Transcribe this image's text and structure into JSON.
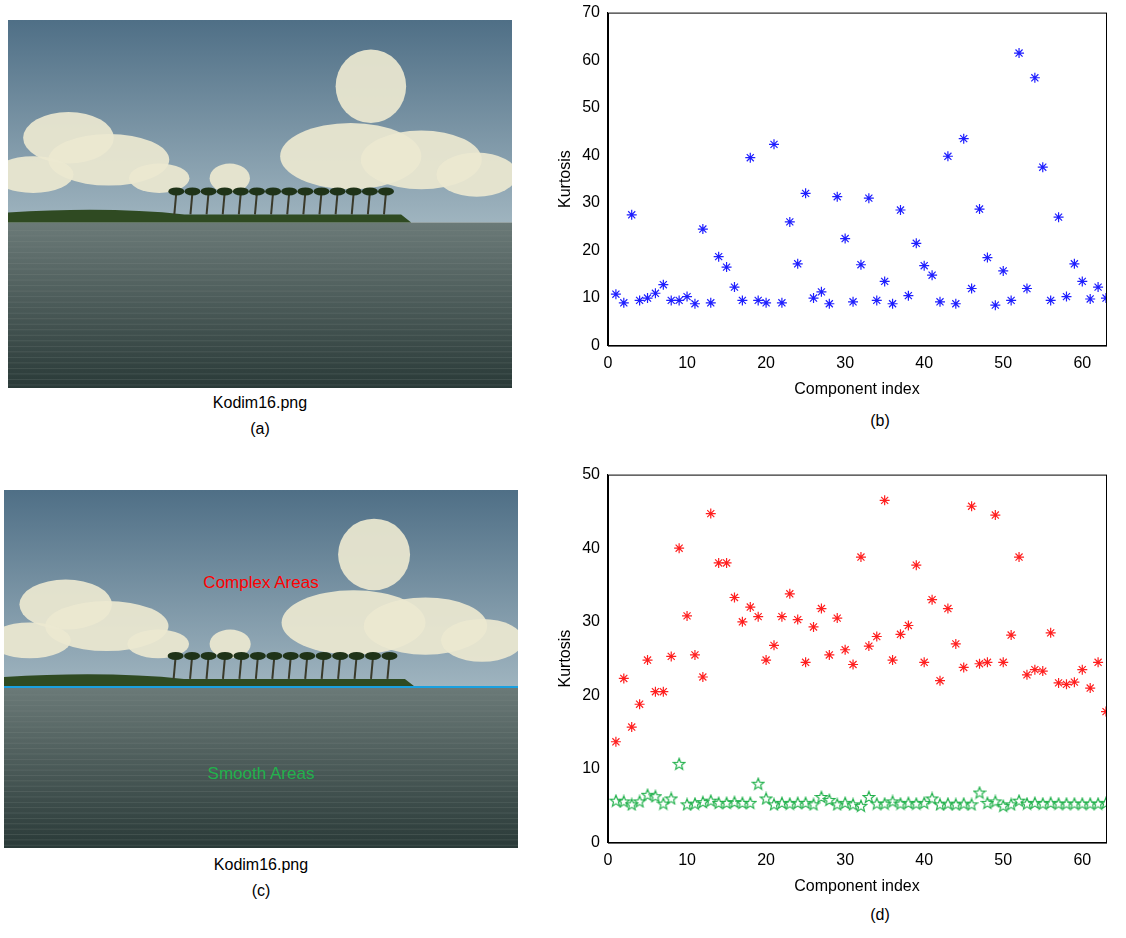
{
  "images": [
    {
      "caption": "Kodim16.png",
      "panel": "(a)"
    },
    {
      "caption": "Kodim16.png",
      "panel": "(c)",
      "annotations": [
        {
          "text": "Complex Areas",
          "color": "#ff0000"
        },
        {
          "text": "Smooth Areas",
          "color": "#22b14c"
        }
      ]
    }
  ],
  "chart_data": [
    {
      "type": "scatter",
      "panel": "(b)",
      "x_label": "Component index",
      "y_label": "Kurtosis",
      "x": [
        1,
        2,
        3,
        4,
        5,
        6,
        7,
        8,
        9,
        10,
        11,
        12,
        13,
        14,
        15,
        16,
        17,
        18,
        19,
        20,
        21,
        22,
        23,
        24,
        25,
        26,
        27,
        28,
        29,
        30,
        31,
        32,
        33,
        34,
        35,
        36,
        37,
        38,
        39,
        40,
        41,
        42,
        43,
        44,
        45,
        46,
        47,
        48,
        49,
        50,
        51,
        52,
        53,
        54,
        55,
        56,
        57,
        58,
        59,
        60,
        61,
        62,
        63
      ],
      "values": [
        10.8,
        9,
        27.5,
        9.5,
        10,
        11,
        12.8,
        9.5,
        9.5,
        10.3,
        8.8,
        24.5,
        9,
        18.7,
        16.5,
        12.3,
        9.5,
        39.5,
        9.5,
        9,
        42.3,
        9,
        26,
        17.2,
        32,
        10,
        11.3,
        8.8,
        31.3,
        22.5,
        9.2,
        17,
        31,
        9.5,
        13.5,
        8.8,
        28.5,
        10.5,
        21.5,
        16.8,
        14.8,
        9.2,
        39.8,
        8.8,
        43.5,
        12,
        28.7,
        18.5,
        8.5,
        15.7,
        9.5,
        61.5,
        12,
        56.3,
        37.5,
        9.5,
        27,
        10.3,
        17.2,
        13.5,
        9.8,
        12.3,
        10
      ],
      "color": "#1f1fff",
      "marker": "asterisk",
      "xlim": [
        0,
        63
      ],
      "xticks": [
        0,
        10,
        20,
        30,
        40,
        50,
        60
      ],
      "ylim": [
        0,
        70
      ],
      "yticks": [
        0,
        10,
        20,
        30,
        40,
        50,
        60,
        70
      ],
      "grid": false
    },
    {
      "type": "scatter",
      "panel": "(d)",
      "x_label": "Component index",
      "y_label": "Kurtosis",
      "x": [
        1,
        2,
        3,
        4,
        5,
        6,
        7,
        8,
        9,
        10,
        11,
        12,
        13,
        14,
        15,
        16,
        17,
        18,
        19,
        20,
        21,
        22,
        23,
        24,
        25,
        26,
        27,
        28,
        29,
        30,
        31,
        32,
        33,
        34,
        35,
        36,
        37,
        38,
        39,
        40,
        41,
        42,
        43,
        44,
        45,
        46,
        47,
        48,
        49,
        50,
        51,
        52,
        53,
        54,
        55,
        56,
        57,
        58,
        59,
        60,
        61,
        62,
        63
      ],
      "series": [
        {
          "color": "#ff2020",
          "marker": "asterisk",
          "values": [
            13.7,
            22.3,
            15.7,
            18.8,
            24.8,
            20.5,
            20.5,
            25.3,
            40,
            30.8,
            25.5,
            22.5,
            44.7,
            38,
            38,
            33.3,
            30,
            32,
            30.7,
            24.8,
            26.8,
            30.7,
            33.8,
            30.3,
            24.5,
            29.3,
            31.8,
            25.5,
            30.5,
            26.2,
            24.2,
            38.8,
            26.7,
            28,
            46.5,
            24.8,
            28.3,
            29.5,
            37.7,
            24.5,
            33,
            22,
            31.8,
            27,
            23.8,
            45.7,
            24.3,
            24.5,
            44.5,
            24.5,
            28.2,
            38.8,
            22.8,
            23.5,
            23.3,
            28.5,
            21.7,
            21.5,
            21.8,
            23.5,
            21,
            24.5,
            17.8
          ]
        },
        {
          "color": "#22b14c",
          "marker": "star",
          "values": [
            5.7,
            5.6,
            5.2,
            5.6,
            6.5,
            6.3,
            5.3,
            6,
            10.7,
            5.2,
            5.3,
            5.5,
            5.7,
            5.4,
            5.4,
            5.5,
            5.4,
            5.4,
            8,
            6,
            5.2,
            5.4,
            5.3,
            5.4,
            5.4,
            5.2,
            6.2,
            5.8,
            5.2,
            5.4,
            5.2,
            5,
            6.2,
            5.3,
            5.3,
            5.6,
            5.3,
            5.4,
            5.3,
            5.4,
            6,
            5.2,
            5.3,
            5.2,
            5.3,
            5.2,
            6.8,
            5.4,
            5.6,
            5,
            5.2,
            5.7,
            5.3,
            5.4,
            5.3,
            5.4,
            5.3,
            5.3,
            5.3,
            5.3,
            5.3,
            5.3,
            5.4
          ]
        }
      ],
      "xlim": [
        0,
        63
      ],
      "xticks": [
        0,
        10,
        20,
        30,
        40,
        50,
        60
      ],
      "ylim": [
        0,
        50
      ],
      "yticks": [
        0,
        10,
        20,
        30,
        40,
        50
      ],
      "grid": false
    }
  ]
}
